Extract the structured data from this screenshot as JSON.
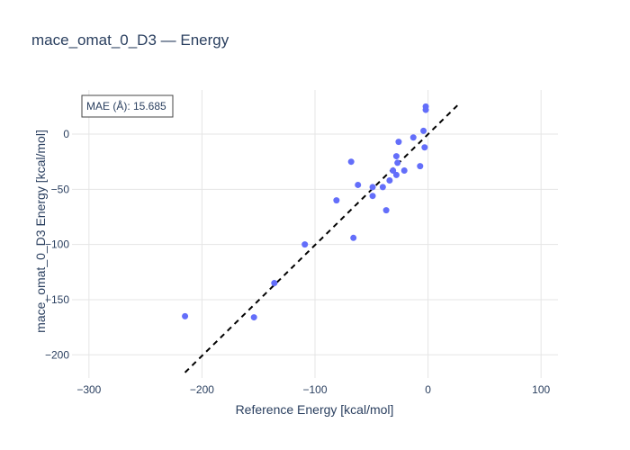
{
  "chart_data": {
    "type": "scatter",
    "title": "mace_omat_0_D3 — Energy",
    "xlabel": "Reference Energy [kcal/mol]",
    "ylabel": "mace_omat_0_D3 Energy [kcal/mol]",
    "xlim": [
      -315,
      115
    ],
    "ylim": [
      -221,
      40
    ],
    "xticks": [
      -300,
      -200,
      -100,
      0,
      100
    ],
    "yticks": [
      -200,
      -150,
      -100,
      -50,
      0
    ],
    "xtick_labels": [
      "−300",
      "−200",
      "−100",
      "0",
      "100"
    ],
    "ytick_labels": [
      "−200",
      "−150",
      "−100",
      "−50",
      "0"
    ],
    "grid": true,
    "annotation": "MAE (Å): 15.685",
    "point_color": "#636efa",
    "reference_line": {
      "style": "dashed",
      "color": "#000000",
      "x": [
        -215,
        26
      ],
      "y": [
        -216,
        26
      ]
    },
    "x": [
      -215,
      -154,
      -136,
      -109,
      -81,
      -68,
      -66,
      -62,
      -49,
      -49,
      -40,
      -37,
      -34,
      -31,
      -28,
      -28,
      -27,
      -26,
      -21,
      -13,
      -7,
      -4,
      -3,
      -2,
      -2
    ],
    "y": [
      -165,
      -166,
      -135,
      -100,
      -60,
      -25,
      -94,
      -46,
      -48,
      -56,
      -48,
      -69,
      -42,
      -33,
      -37,
      -20,
      -26,
      -7,
      -33,
      -3,
      -29,
      3,
      -12,
      22,
      25
    ]
  }
}
